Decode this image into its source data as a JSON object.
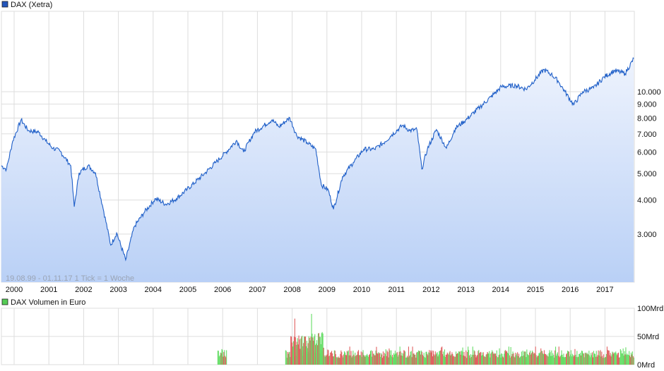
{
  "chart_data": [
    {
      "type": "area",
      "title": "DAX (Xetra)",
      "legend_color": "#2255bb",
      "line_color": "#1f5fc8",
      "fill_top": "#eef3fd",
      "fill_bottom": "#b9d0f6",
      "scale": "log",
      "ylim": [
        2050,
        16500
      ],
      "xlim": [
        1999.63,
        2017.83
      ],
      "y_ticks": [
        {
          "value": 3000,
          "label": "3.000"
        },
        {
          "value": 4000,
          "label": "4.000"
        },
        {
          "value": 5000,
          "label": "5.000"
        },
        {
          "value": 6000,
          "label": "6.000"
        },
        {
          "value": 7000,
          "label": "7.000"
        },
        {
          "value": 8000,
          "label": "8.000"
        },
        {
          "value": 9000,
          "label": "9.000"
        },
        {
          "value": 10000,
          "label": "10.000"
        }
      ],
      "x_ticks": [
        "2000",
        "2001",
        "2002",
        "2003",
        "2004",
        "2005",
        "2006",
        "2007",
        "2008",
        "2009",
        "2010",
        "2011",
        "2012",
        "2013",
        "2014",
        "2015",
        "2016",
        "2017"
      ],
      "info_text": "19.08.99 - 01.11.17   1 Tick = 1 Woche",
      "points": [
        [
          1999.63,
          5350
        ],
        [
          1999.78,
          5190
        ],
        [
          1999.96,
          6590
        ],
        [
          2000.2,
          7880
        ],
        [
          2000.41,
          7200
        ],
        [
          2000.71,
          7100
        ],
        [
          2000.91,
          6590
        ],
        [
          2001.12,
          6200
        ],
        [
          2001.32,
          6050
        ],
        [
          2001.63,
          5350
        ],
        [
          2001.73,
          3780
        ],
        [
          2001.87,
          5040
        ],
        [
          2002.13,
          5350
        ],
        [
          2002.34,
          5040
        ],
        [
          2002.58,
          3630
        ],
        [
          2002.78,
          2730
        ],
        [
          2002.95,
          3030
        ],
        [
          2003.21,
          2410
        ],
        [
          2003.46,
          3200
        ],
        [
          2003.76,
          3630
        ],
        [
          2004.07,
          4050
        ],
        [
          2004.37,
          3860
        ],
        [
          2004.67,
          4050
        ],
        [
          2004.98,
          4380
        ],
        [
          2005.49,
          5020
        ],
        [
          2005.79,
          5480
        ],
        [
          2006.1,
          6000
        ],
        [
          2006.4,
          6620
        ],
        [
          2006.6,
          6000
        ],
        [
          2006.91,
          7100
        ],
        [
          2007.42,
          7880
        ],
        [
          2007.62,
          7430
        ],
        [
          2007.93,
          8020
        ],
        [
          2008.13,
          6900
        ],
        [
          2008.43,
          6500
        ],
        [
          2008.68,
          6150
        ],
        [
          2008.84,
          4550
        ],
        [
          2009.04,
          4350
        ],
        [
          2009.19,
          3700
        ],
        [
          2009.45,
          4880
        ],
        [
          2009.76,
          5500
        ],
        [
          2010.06,
          6150
        ],
        [
          2010.37,
          6150
        ],
        [
          2010.67,
          6550
        ],
        [
          2010.87,
          6950
        ],
        [
          2011.18,
          7530
        ],
        [
          2011.38,
          7200
        ],
        [
          2011.59,
          7260
        ],
        [
          2011.73,
          5200
        ],
        [
          2011.89,
          6150
        ],
        [
          2012.15,
          7260
        ],
        [
          2012.44,
          6200
        ],
        [
          2012.7,
          7350
        ],
        [
          2013.01,
          7900
        ],
        [
          2013.41,
          8800
        ],
        [
          2013.72,
          9570
        ],
        [
          2014.02,
          10430
        ],
        [
          2014.43,
          10540
        ],
        [
          2014.73,
          10220
        ],
        [
          2014.98,
          11050
        ],
        [
          2015.24,
          12050
        ],
        [
          2015.45,
          11600
        ],
        [
          2015.65,
          10960
        ],
        [
          2015.85,
          10000
        ],
        [
          2016.1,
          8950
        ],
        [
          2016.36,
          10000
        ],
        [
          2016.67,
          10320
        ],
        [
          2016.98,
          11340
        ],
        [
          2017.28,
          11960
        ],
        [
          2017.58,
          11650
        ],
        [
          2017.83,
          13240
        ]
      ]
    },
    {
      "type": "bar",
      "title": "DAX Volumen in Euro",
      "legend_color": "#55cc55",
      "up_color": "#66dd66",
      "down_color": "#e06060",
      "ylim": [
        0,
        100
      ],
      "y_ticks": [
        {
          "value": 0,
          "label": "0Mrd"
        },
        {
          "value": 50,
          "label": "50Mrd"
        },
        {
          "value": 100,
          "label": "100Mrd"
        }
      ],
      "segments": [
        {
          "start": 2005.85,
          "end": 2006.1,
          "level": 22,
          "peak": 30
        },
        {
          "start": 2007.8,
          "end": 2017.83,
          "level": 20,
          "peak": 32
        },
        {
          "start": 2007.95,
          "end": 2008.9,
          "level": 45,
          "peak": 90
        }
      ]
    }
  ]
}
